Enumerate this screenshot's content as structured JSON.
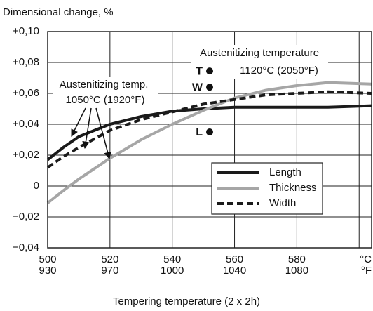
{
  "chart_data": {
    "type": "line",
    "title": "Dimensional change, %",
    "x_label": "Tempering temperature (2 x 2h)",
    "xlim": [
      500,
      604
    ],
    "ylim": [
      -0.04,
      0.1
    ],
    "xticks": [
      500,
      520,
      540,
      560,
      580,
      {
        "value": 600,
        "label": "°C"
      }
    ],
    "xticks_fahrenheit": [
      930,
      970,
      1000,
      1040,
      1080,
      "°F"
    ],
    "yticks": [
      {
        "value": 0.1,
        "label": "+0,10"
      },
      {
        "value": 0.08,
        "label": "+0,08"
      },
      {
        "value": 0.06,
        "label": "+0,06"
      },
      {
        "value": 0.04,
        "label": "+0,04"
      },
      {
        "value": 0.02,
        "label": "+0,02"
      },
      0,
      {
        "value": -0.02,
        "label": "−0,02"
      },
      {
        "value": -0.04,
        "label": "−0,04"
      }
    ],
    "grid": true,
    "x": [
      500,
      505,
      510,
      520,
      530,
      540,
      550,
      560,
      570,
      580,
      590,
      604
    ],
    "series": [
      {
        "name": "Length",
        "color": "#1a1a1a",
        "style": "solid",
        "values": [
          0.017,
          0.025,
          0.032,
          0.04,
          0.045,
          0.0485,
          0.05,
          0.051,
          0.051,
          0.051,
          0.051,
          0.052
        ]
      },
      {
        "name": "Thickness",
        "color": "#a6a6a6",
        "style": "solid",
        "values": [
          -0.011,
          -0.003,
          0.0045,
          0.018,
          0.03,
          0.04,
          0.049,
          0.057,
          0.062,
          0.065,
          0.067,
          0.066
        ]
      },
      {
        "name": "Width",
        "color": "#1a1a1a",
        "style": "dashed",
        "values": [
          0.012,
          0.019,
          0.025,
          0.036,
          0.043,
          0.048,
          0.053,
          0.056,
          0.059,
          0.06,
          0.061,
          0.06
        ]
      }
    ],
    "points": [
      {
        "label": "T",
        "x": 552,
        "y": 0.0745
      },
      {
        "label": "W",
        "x": 552,
        "y": 0.064
      },
      {
        "label": "L",
        "x": 552,
        "y": 0.035
      }
    ],
    "annotations": [
      {
        "lines": [
          "Austenitizing temperature",
          "1120°C (2050°F)"
        ]
      },
      {
        "lines": [
          "Austenitizing temp.",
          "1050°C (1920°F)"
        ]
      }
    ],
    "legend": "lower right"
  }
}
